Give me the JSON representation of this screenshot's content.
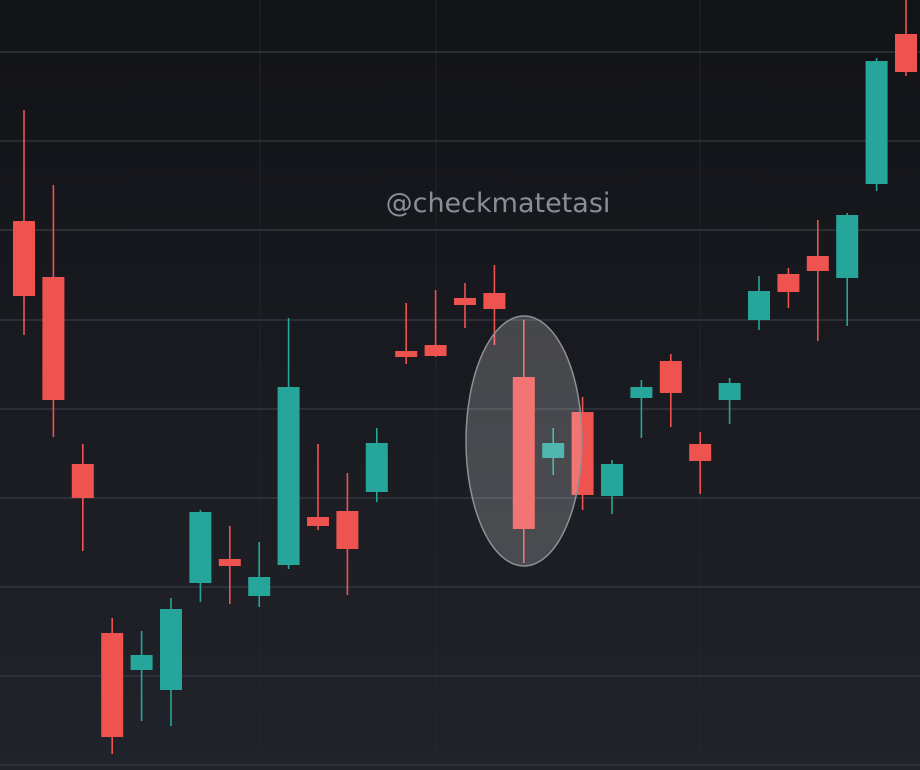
{
  "chart_data": {
    "type": "candlestick",
    "watermark": "@checkmatetasi",
    "up_color": "#26a69a",
    "down_color": "#ef5350",
    "ylim": [
      0,
      770
    ],
    "gridlines": [
      718,
      629,
      540,
      450,
      361,
      272,
      183,
      94,
      5
    ],
    "open": [
      549,
      493,
      306,
      137,
      100,
      80,
      187,
      211,
      174,
      205,
      253,
      259,
      278,
      419,
      425,
      472,
      477,
      393,
      312,
      358,
      274,
      372,
      409,
      326,
      370,
      450,
      496,
      514,
      492,
      586,
      736
    ],
    "high": [
      660,
      585,
      326,
      152,
      139,
      172,
      260,
      244,
      228,
      452,
      326,
      297,
      342,
      467,
      480,
      487,
      505,
      450,
      342,
      373,
      310,
      390,
      416,
      338,
      392,
      494,
      502,
      550,
      557,
      712,
      770
    ],
    "low": [
      435,
      333,
      219,
      16,
      49,
      44,
      168,
      166,
      163,
      201,
      240,
      175,
      268,
      406,
      413,
      442,
      425,
      207,
      295,
      260,
      256,
      332,
      343,
      276,
      346,
      440,
      462,
      429,
      444,
      579,
      694
    ],
    "close": [
      474,
      370,
      272,
      33,
      115,
      161,
      258,
      204,
      193,
      383,
      244,
      221,
      327,
      413,
      414,
      465,
      461,
      241,
      327,
      275,
      306,
      383,
      377,
      309,
      387,
      479,
      478,
      499,
      555,
      709,
      698
    ]
  }
}
